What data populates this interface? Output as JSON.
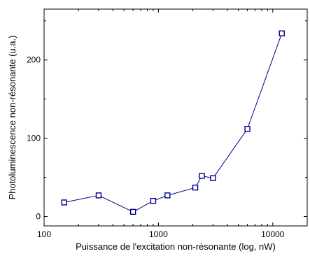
{
  "chart_data": {
    "type": "line",
    "title": "",
    "xlabel": "Puissance de l'excitation non-résonante (log, nW)",
    "ylabel": "Photoluminescence non-résonante (u.a.)",
    "xscale": "log",
    "xlim": [
      100,
      20000
    ],
    "ylim": [
      -12,
      265
    ],
    "xticks": [
      100,
      1000,
      10000
    ],
    "xtick_labels": [
      "100",
      "1000",
      "10000"
    ],
    "yticks": [
      0,
      100,
      200
    ],
    "ytick_labels": [
      "0",
      "100",
      "200"
    ],
    "grid": false,
    "legend": "none",
    "series": [
      {
        "marker": "open-square",
        "color": "#00008b",
        "x": [
          150,
          300,
          600,
          900,
          1200,
          2100,
          2400,
          3000,
          6000,
          12000
        ],
        "y": [
          18,
          27,
          6,
          20,
          27,
          37,
          52,
          49,
          112,
          234
        ]
      }
    ]
  }
}
